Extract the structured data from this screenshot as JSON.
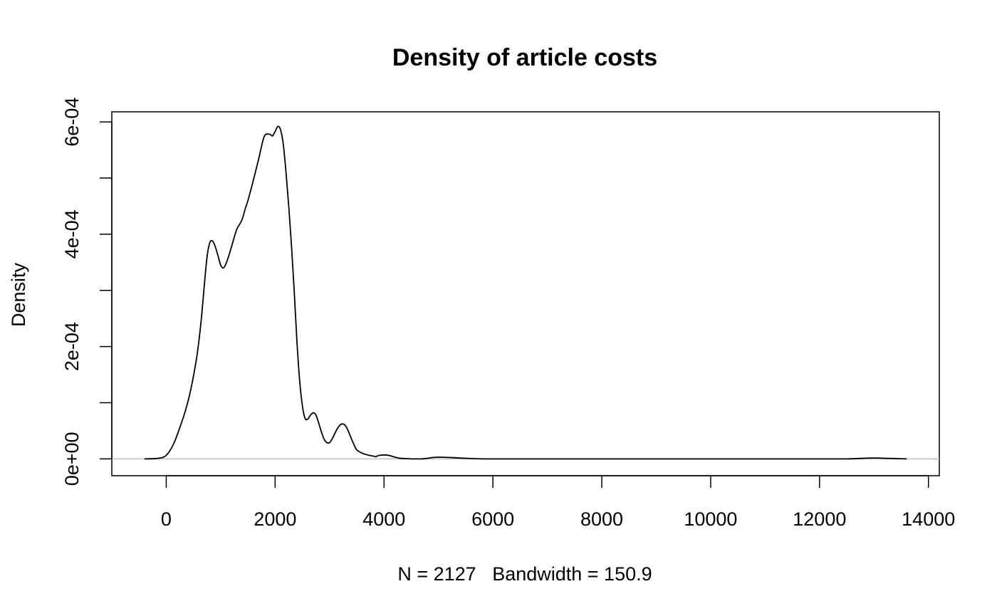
{
  "chart_data": {
    "type": "line",
    "title": "Density of article costs",
    "xlabel": "N = 2127   Bandwidth = 150.9",
    "ylabel": "Density",
    "x_ticks": [
      0,
      2000,
      4000,
      6000,
      8000,
      10000,
      12000,
      14000
    ],
    "x_tick_labels": [
      "0",
      "2000",
      "4000",
      "6000",
      "8000",
      "10000",
      "12000",
      "14000"
    ],
    "y_ticks": [
      0,
      0.0002,
      0.0004,
      0.0006
    ],
    "y_tick_labels": [
      "0e+00",
      "2e-04",
      "4e-04",
      "6e-04"
    ],
    "y_minor_ticks": [
      0.0001,
      0.0003,
      0.0005
    ],
    "xlim": [
      -1000,
      14200
    ],
    "ylim": [
      -3e-05,
      0.000618
    ],
    "grid": false,
    "zero_line": true,
    "series": [
      {
        "x": [
          -400,
          -200,
          -50,
          50,
          150,
          250,
          350,
          450,
          550,
          600,
          650,
          700,
          750,
          800,
          850,
          900,
          950,
          1000,
          1050,
          1100,
          1150,
          1200,
          1250,
          1300,
          1350,
          1400,
          1450,
          1500,
          1600,
          1700,
          1800,
          1900,
          1950,
          2000,
          2050,
          2100,
          2150,
          2200,
          2250,
          2300,
          2350,
          2400,
          2450,
          2500,
          2550,
          2600,
          2650,
          2700,
          2750,
          2800,
          2850,
          2900,
          2950,
          3000,
          3050,
          3100,
          3150,
          3200,
          3250,
          3300,
          3350,
          3400,
          3450,
          3500,
          3600,
          3700,
          3800,
          3850,
          3900,
          4000,
          4100,
          4200,
          4300,
          4400,
          4500,
          4600,
          4700,
          4800,
          4900,
          5000,
          5200,
          5500,
          5800,
          5900,
          6000,
          6200,
          6500,
          7000,
          8000,
          9000,
          10000,
          11000,
          12000,
          12500,
          12800,
          13000,
          13200,
          13400,
          13600
        ],
        "y": [
          0,
          5e-07,
          3e-06,
          1.2e-05,
          3e-05,
          5.6e-05,
          8.5e-05,
          0.000123,
          0.000175,
          0.00021,
          0.000255,
          0.00031,
          0.00036,
          0.000385,
          0.000388,
          0.000378,
          0.000362,
          0.000345,
          0.00034,
          0.000348,
          0.000362,
          0.000378,
          0.000395,
          0.00041,
          0.000418,
          0.000428,
          0.000445,
          0.00046,
          0.000496,
          0.000535,
          0.000574,
          0.000578,
          0.000575,
          0.000583,
          0.000592,
          0.000586,
          0.00056,
          0.00051,
          0.00045,
          0.00038,
          0.0003,
          0.00021,
          0.00014,
          9.5e-05,
          7.2e-05,
          7.1e-05,
          7.8e-05,
          8.2e-05,
          7.8e-05,
          6.4e-05,
          4.8e-05,
          3.5e-05,
          2.9e-05,
          2.9e-05,
          3.6e-05,
          4.6e-05,
          5.5e-05,
          6.1e-05,
          6.2e-05,
          5.8e-05,
          4.8e-05,
          3.6e-05,
          2.5e-05,
          1.6e-05,
          1e-05,
          7e-06,
          5e-06,
          4e-06,
          6e-06,
          7e-06,
          6e-06,
          3e-06,
          1e-06,
          5e-07,
          0,
          0,
          0,
          1e-06,
          2.5e-06,
          3e-06,
          2.5e-06,
          1e-06,
          0,
          0,
          0,
          0,
          0,
          0,
          0,
          0,
          0,
          0,
          0,
          0,
          1e-06,
          1.5e-06,
          1e-06,
          5e-07,
          0
        ],
        "color": "#000000"
      }
    ]
  }
}
